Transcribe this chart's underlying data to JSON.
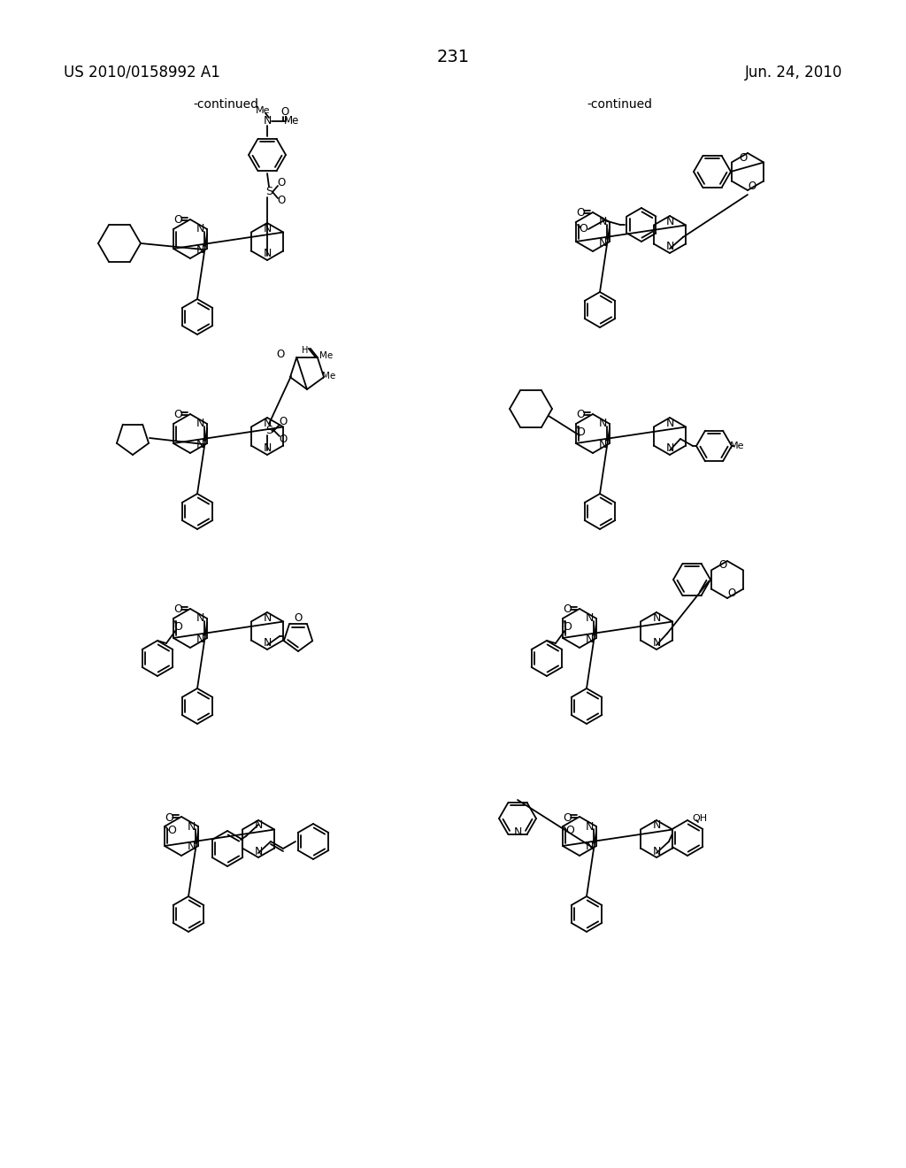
{
  "background_color": "#ffffff",
  "header_left": "US 2010/0158992 A1",
  "header_right": "Jun. 24, 2010",
  "page_number": "231",
  "continued_left": "-continued",
  "continued_right": "-continued"
}
